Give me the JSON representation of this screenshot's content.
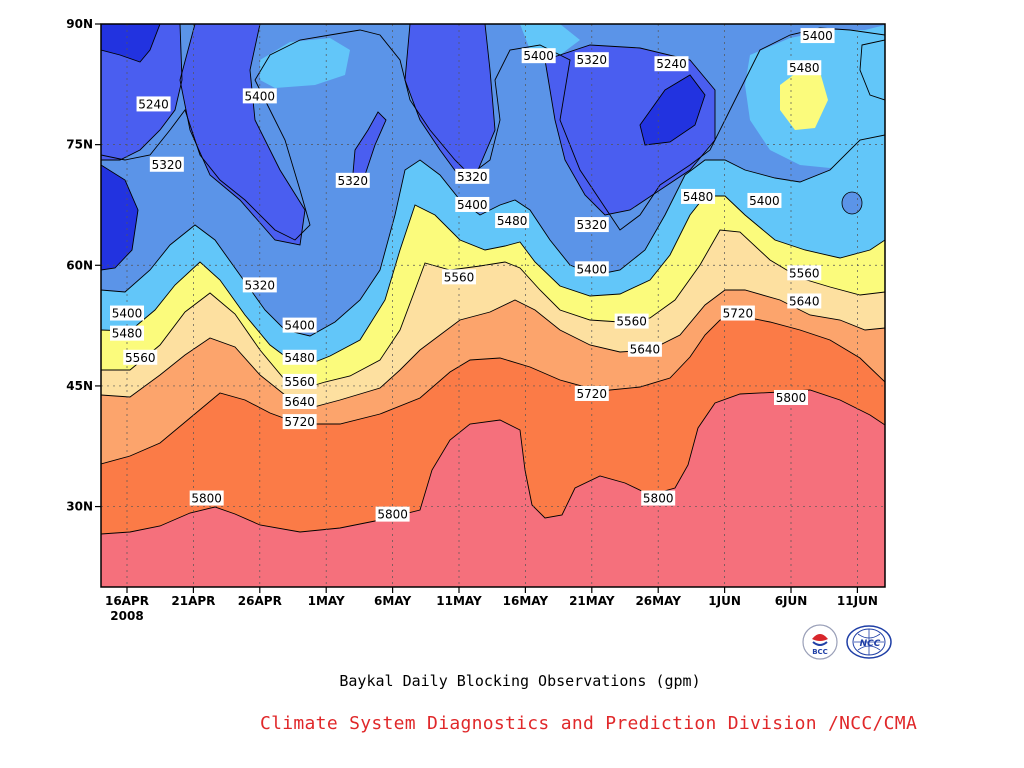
{
  "chart_data": {
    "type": "contour",
    "title": "Baykal Daily Blocking Observations (gpm)",
    "xlabel": "",
    "ylabel": "",
    "x_tick_labels": [
      "16APR",
      "21APR",
      "26APR",
      "1MAY",
      "6MAY",
      "11MAY",
      "16MAY",
      "21MAY",
      "26MAY",
      "1JUN",
      "6JUN",
      "11JUN"
    ],
    "x_year_label": "2008",
    "y_tick_labels": [
      "90N",
      "75N",
      "60N",
      "45N",
      "30N"
    ],
    "ylim": [
      20,
      90
    ],
    "contour_levels": [
      5240,
      5320,
      5400,
      5480,
      5560,
      5640,
      5720,
      5800
    ],
    "fill_colors": [
      "#0a1fa8",
      "#2233e0",
      "#4a5ef0",
      "#5b94e8",
      "#62c6f9",
      "#fbfb7c",
      "#fde0a0",
      "#fca46c",
      "#fb7b47",
      "#f5707c"
    ],
    "contour_labels": [
      {
        "text": "5400",
        "date": "16APR",
        "lat": 54
      },
      {
        "text": "5480",
        "date": "16APR",
        "lat": 51.5
      },
      {
        "text": "5560",
        "date": "17APR",
        "lat": 48.5
      },
      {
        "text": "5240",
        "date": "18APR",
        "lat": 80
      },
      {
        "text": "5320",
        "date": "19APR",
        "lat": 72.5
      },
      {
        "text": "5800",
        "date": "22APR",
        "lat": 31
      },
      {
        "text": "5400",
        "date": "26APR",
        "lat": 81
      },
      {
        "text": "5320",
        "date": "26APR",
        "lat": 57.5
      },
      {
        "text": "5400",
        "date": "29APR",
        "lat": 52.5
      },
      {
        "text": "5480",
        "date": "29APR",
        "lat": 48.5
      },
      {
        "text": "5560",
        "date": "29APR",
        "lat": 45.5
      },
      {
        "text": "5640",
        "date": "29APR",
        "lat": 43
      },
      {
        "text": "5720",
        "date": "29APR",
        "lat": 40.5
      },
      {
        "text": "5320",
        "date": "3MAY",
        "lat": 70.5
      },
      {
        "text": "5800",
        "date": "6MAY",
        "lat": 29
      },
      {
        "text": "5560",
        "date": "11MAY",
        "lat": 58.5
      },
      {
        "text": "5320",
        "date": "12MAY",
        "lat": 71
      },
      {
        "text": "5400",
        "date": "12MAY",
        "lat": 67.5
      },
      {
        "text": "5480",
        "date": "15MAY",
        "lat": 65.5
      },
      {
        "text": "5400",
        "date": "17MAY",
        "lat": 86
      },
      {
        "text": "5320",
        "date": "21MAY",
        "lat": 85.5
      },
      {
        "text": "5320",
        "date": "21MAY",
        "lat": 65
      },
      {
        "text": "5720",
        "date": "21MAY",
        "lat": 44
      },
      {
        "text": "5400",
        "date": "21MAY",
        "lat": 59.5
      },
      {
        "text": "5560",
        "date": "24MAY",
        "lat": 53
      },
      {
        "text": "5640",
        "date": "25MAY",
        "lat": 49.5
      },
      {
        "text": "5800",
        "date": "26MAY",
        "lat": 31
      },
      {
        "text": "5240",
        "date": "27MAY",
        "lat": 85
      },
      {
        "text": "5480",
        "date": "29MAY",
        "lat": 68.5
      },
      {
        "text": "5720",
        "date": "1JUN",
        "lat": 54
      },
      {
        "text": "5400",
        "date": "3JUN",
        "lat": 68
      },
      {
        "text": "5800",
        "date": "5JUN",
        "lat": 43.5
      },
      {
        "text": "5560",
        "date": "6JUN",
        "lat": 59
      },
      {
        "text": "5640",
        "date": "6JUN",
        "lat": 55.5
      },
      {
        "text": "5480",
        "date": "6JUN",
        "lat": 84.5
      },
      {
        "text": "5400",
        "date": "7JUN",
        "lat": 88.5
      }
    ]
  },
  "footer": {
    "title": "Baykal Daily Blocking Observations (gpm)",
    "credit": "Climate System Diagnostics and Prediction Division /NCC/CMA"
  },
  "logos": {
    "left": "bcc-logo",
    "right": "ncc-logo",
    "left_text": "BCC",
    "right_text": "NCC"
  }
}
